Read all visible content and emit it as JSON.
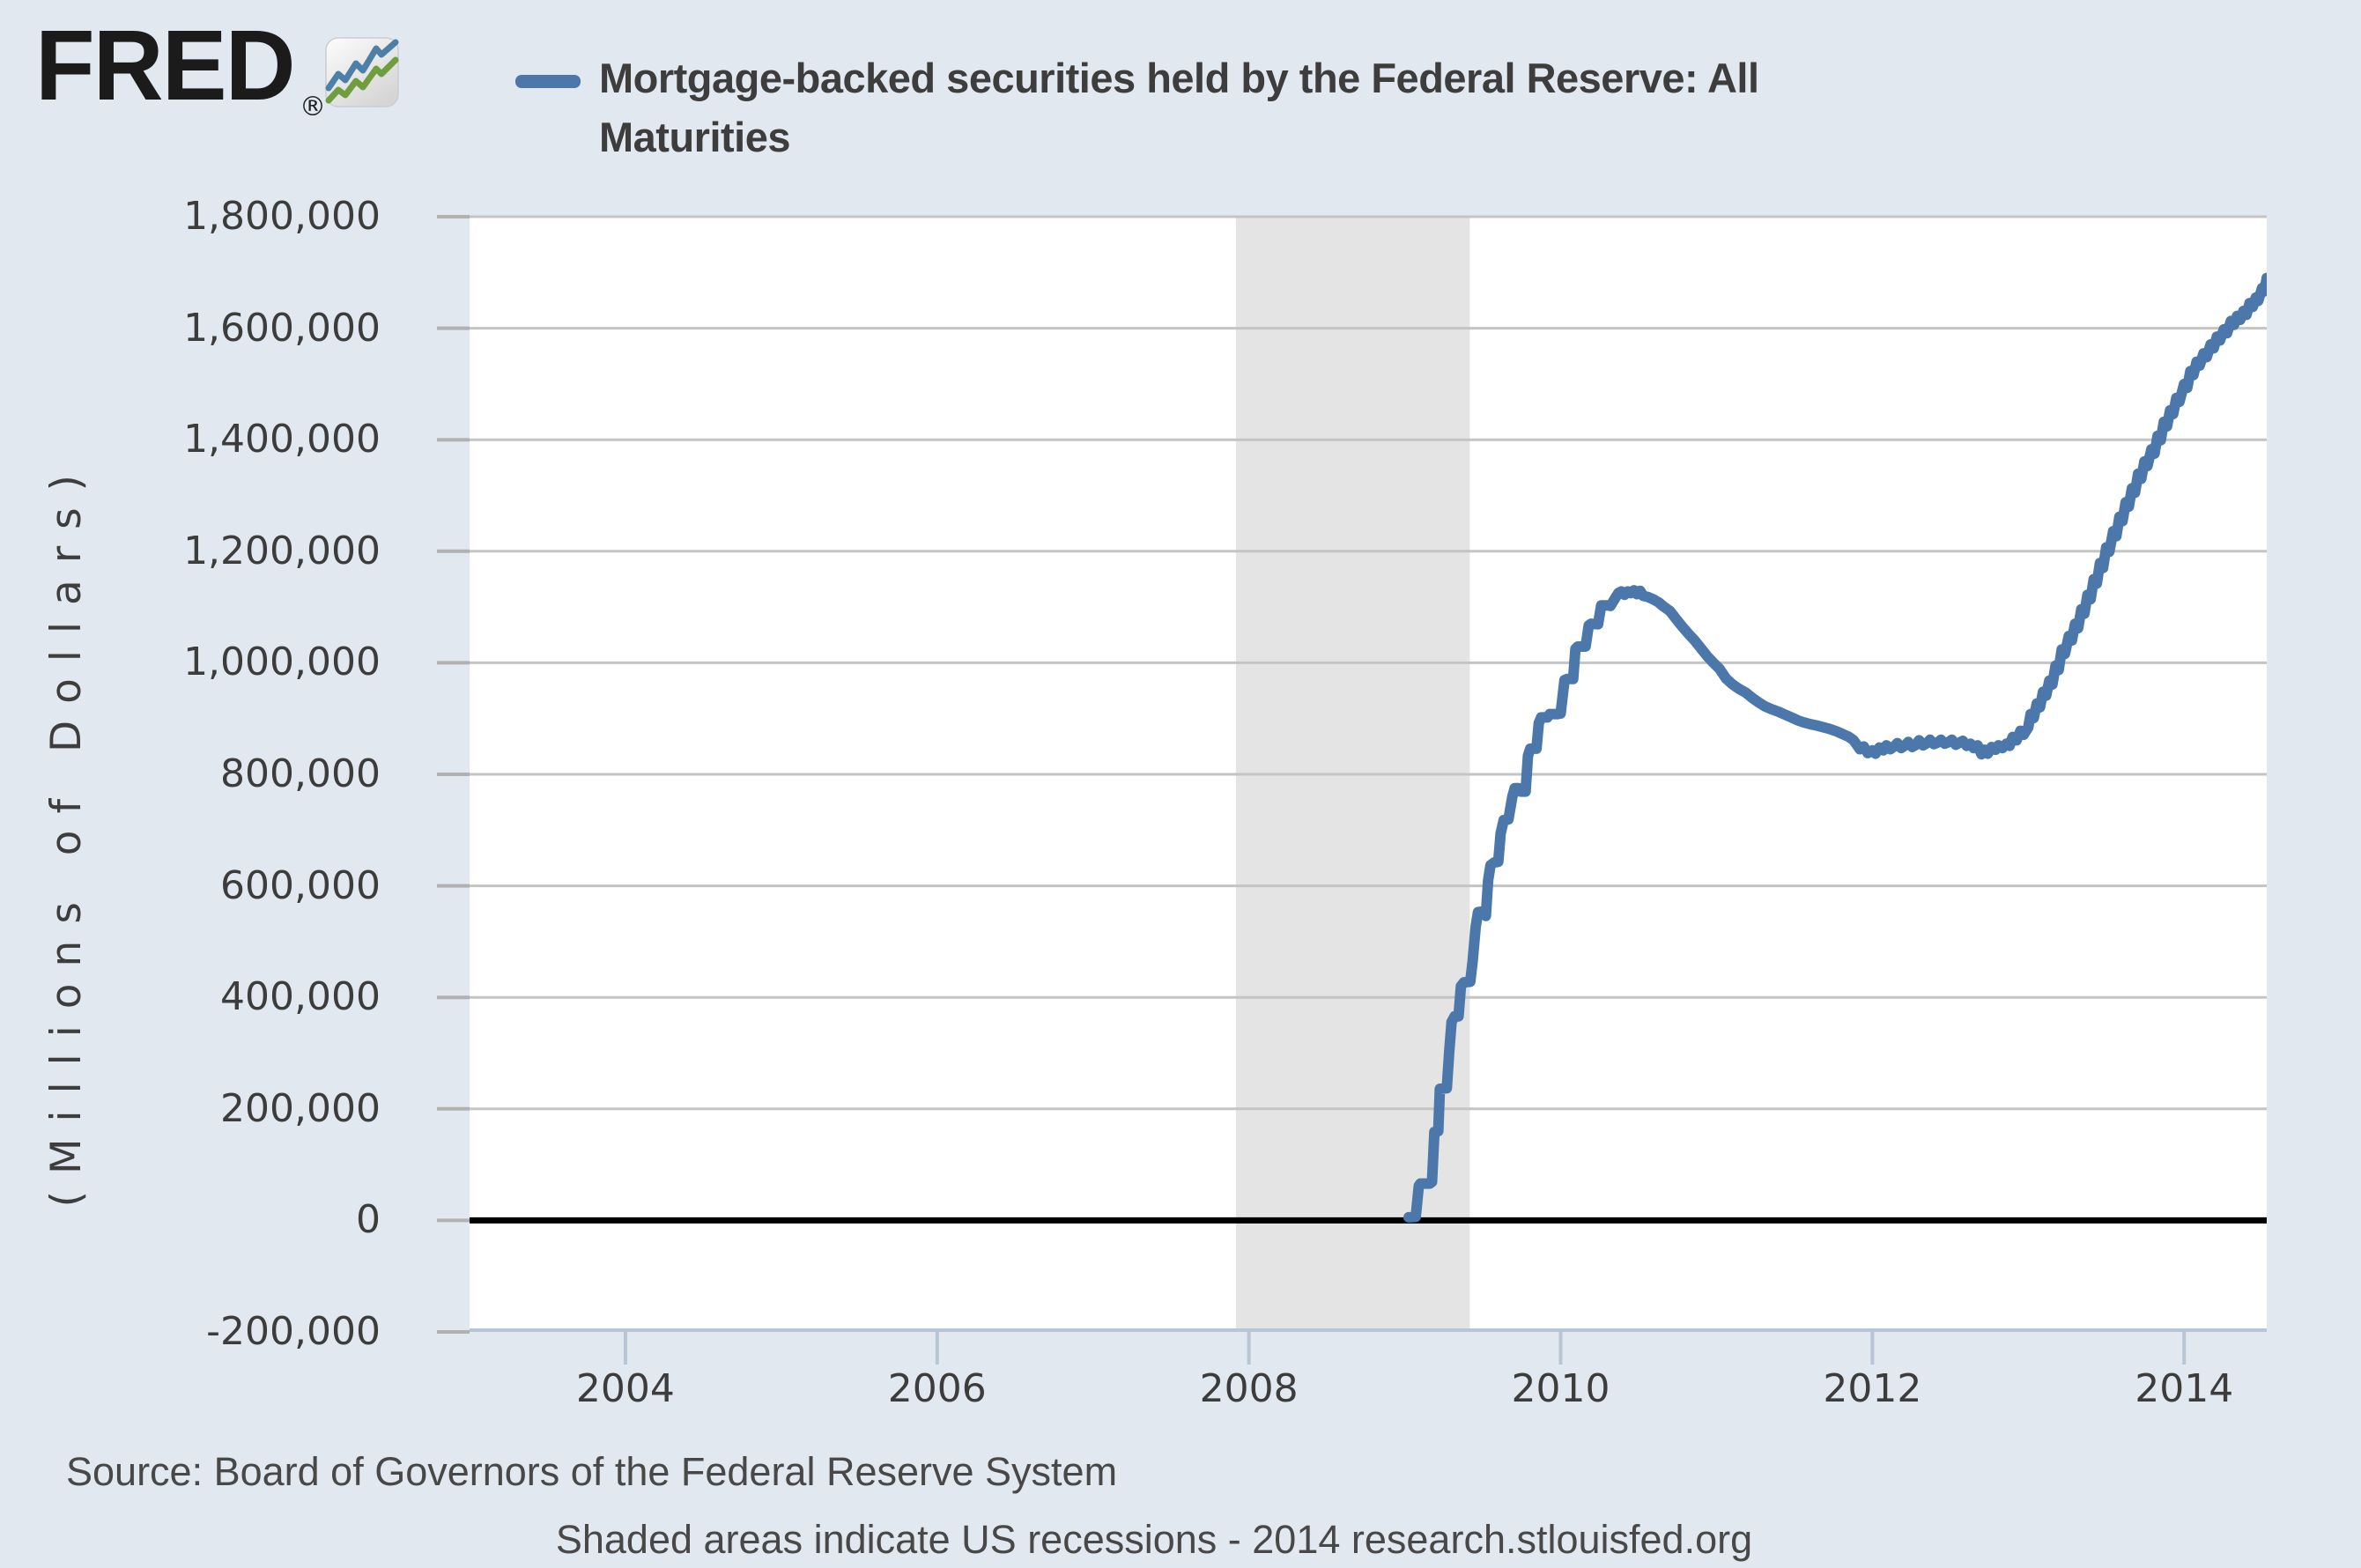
{
  "colors": {
    "page_background": "#e2e8ef",
    "plot_background": "#ffffff",
    "gridline": "#c4c4c4",
    "recession_band": "#e4e4e4",
    "zero_line": "#000000",
    "axis_line": "#b7c5d4",
    "y_tick_mark": "#b1b1b1",
    "text_dark": "#3c3c3c",
    "logo_black": "#1b1b1b",
    "logo_icon_blue": "#4e7fa6",
    "logo_icon_green": "#6f9e3f",
    "series_blue": "#4b77ab"
  },
  "header": {
    "logo_text": "FRED",
    "registered_mark": "®",
    "legend_label": "Mortgage-backed securities held by the Federal Reserve: All Maturities"
  },
  "footer": {
    "source_line": "Source: Board of Governors of the Federal Reserve System",
    "note_line": "Shaded areas indicate US recessions - 2014 research.stlouisfed.org"
  },
  "chart_data": {
    "type": "line",
    "title": "Mortgage-backed securities held by the Federal Reserve: All Maturities",
    "xlabel": "",
    "ylabel": "(Millions of Dollars)",
    "xlim": [
      2003.0,
      2014.53
    ],
    "ylim": [
      -200000,
      1800000
    ],
    "grid": "horizontal",
    "legend_position": "top-left",
    "x_ticks": [
      {
        "value": 2004,
        "label": "2004"
      },
      {
        "value": 2006,
        "label": "2006"
      },
      {
        "value": 2008,
        "label": "2008"
      },
      {
        "value": 2010,
        "label": "2010"
      },
      {
        "value": 2012,
        "label": "2012"
      },
      {
        "value": 2014,
        "label": "2014"
      }
    ],
    "y_ticks": [
      {
        "value": -200000,
        "label": "-200,000"
      },
      {
        "value": 0,
        "label": "0"
      },
      {
        "value": 200000,
        "label": "200,000"
      },
      {
        "value": 400000,
        "label": "400,000"
      },
      {
        "value": 600000,
        "label": "600,000"
      },
      {
        "value": 800000,
        "label": "800,000"
      },
      {
        "value": 1000000,
        "label": "1,000,000"
      },
      {
        "value": 1200000,
        "label": "1,200,000"
      },
      {
        "value": 1400000,
        "label": "1,400,000"
      },
      {
        "value": 1600000,
        "label": "1,600,000"
      },
      {
        "value": 1800000,
        "label": "1,800,000"
      }
    ],
    "recession_bands": [
      {
        "start": 2007.917,
        "end": 2009.417
      }
    ],
    "series": [
      {
        "name": "Mortgage-backed securities held by the Federal Reserve: All Maturities",
        "color": "#4b77ab",
        "points": [
          [
            2009.025,
            5600
          ],
          [
            2009.07,
            6300
          ],
          [
            2009.09,
            62000
          ],
          [
            2009.1,
            66000
          ],
          [
            2009.16,
            66000
          ],
          [
            2009.175,
            69000
          ],
          [
            2009.19,
            159000
          ],
          [
            2009.215,
            160000
          ],
          [
            2009.225,
            236000
          ],
          [
            2009.27,
            237000
          ],
          [
            2009.285,
            302000
          ],
          [
            2009.3,
            356000
          ],
          [
            2009.32,
            366000
          ],
          [
            2009.345,
            366000
          ],
          [
            2009.36,
            420000
          ],
          [
            2009.38,
            427000
          ],
          [
            2009.42,
            428000
          ],
          [
            2009.435,
            463000
          ],
          [
            2009.455,
            527000
          ],
          [
            2009.47,
            553000
          ],
          [
            2009.5,
            554000
          ],
          [
            2009.52,
            546000
          ],
          [
            2009.535,
            610000
          ],
          [
            2009.55,
            637000
          ],
          [
            2009.575,
            642000
          ],
          [
            2009.6,
            643000
          ],
          [
            2009.615,
            694000
          ],
          [
            2009.635,
            718000
          ],
          [
            2009.665,
            719000
          ],
          [
            2009.69,
            760000
          ],
          [
            2009.705,
            775000
          ],
          [
            2009.73,
            775000
          ],
          [
            2009.745,
            769000
          ],
          [
            2009.775,
            769000
          ],
          [
            2009.79,
            833000
          ],
          [
            2009.805,
            846000
          ],
          [
            2009.845,
            846000
          ],
          [
            2009.86,
            892000
          ],
          [
            2009.875,
            902000
          ],
          [
            2009.915,
            902000
          ],
          [
            2009.93,
            908000
          ],
          [
            2009.98,
            908000
          ],
          [
            2010.0,
            909000
          ],
          [
            2010.025,
            969000
          ],
          [
            2010.04,
            971000
          ],
          [
            2010.08,
            971000
          ],
          [
            2010.095,
            1025000
          ],
          [
            2010.11,
            1029000
          ],
          [
            2010.16,
            1029000
          ],
          [
            2010.18,
            1067000
          ],
          [
            2010.195,
            1070000
          ],
          [
            2010.24,
            1069000
          ],
          [
            2010.26,
            1103000
          ],
          [
            2010.3,
            1103000
          ],
          [
            2010.32,
            1102000
          ],
          [
            2010.35,
            1116000
          ],
          [
            2010.37,
            1125000
          ],
          [
            2010.39,
            1128000
          ],
          [
            2010.41,
            1122000
          ],
          [
            2010.43,
            1128000
          ],
          [
            2010.45,
            1125000
          ],
          [
            2010.47,
            1130000
          ],
          [
            2010.49,
            1123000
          ],
          [
            2010.51,
            1129000
          ],
          [
            2010.53,
            1120000
          ],
          [
            2010.56,
            1118000
          ],
          [
            2010.6,
            1113000
          ],
          [
            2010.63,
            1108000
          ],
          [
            2010.66,
            1101000
          ],
          [
            2010.7,
            1093000
          ],
          [
            2010.74,
            1079000
          ],
          [
            2010.78,
            1065000
          ],
          [
            2010.82,
            1052000
          ],
          [
            2010.86,
            1040000
          ],
          [
            2010.9,
            1026000
          ],
          [
            2010.94,
            1012000
          ],
          [
            2010.98,
            1000000
          ],
          [
            2011.02,
            989000
          ],
          [
            2011.06,
            972000
          ],
          [
            2011.1,
            962000
          ],
          [
            2011.14,
            954000
          ],
          [
            2011.19,
            946000
          ],
          [
            2011.23,
            937000
          ],
          [
            2011.27,
            929000
          ],
          [
            2011.31,
            922000
          ],
          [
            2011.35,
            917000
          ],
          [
            2011.4,
            912000
          ],
          [
            2011.44,
            907000
          ],
          [
            2011.48,
            902000
          ],
          [
            2011.52,
            897000
          ],
          [
            2011.56,
            893000
          ],
          [
            2011.6,
            890000
          ],
          [
            2011.65,
            887000
          ],
          [
            2011.69,
            884000
          ],
          [
            2011.73,
            881000
          ],
          [
            2011.77,
            877000
          ],
          [
            2011.81,
            872000
          ],
          [
            2011.85,
            867000
          ],
          [
            2011.88,
            861000
          ],
          [
            2011.9,
            853000
          ],
          [
            2011.92,
            845000
          ],
          [
            2011.945,
            850000
          ],
          [
            2011.97,
            838000
          ],
          [
            2012.0,
            843000
          ],
          [
            2012.02,
            837000
          ],
          [
            2012.045,
            848000
          ],
          [
            2012.07,
            843000
          ],
          [
            2012.09,
            852000
          ],
          [
            2012.115,
            845000
          ],
          [
            2012.14,
            850000
          ],
          [
            2012.16,
            856000
          ],
          [
            2012.185,
            847000
          ],
          [
            2012.21,
            852000
          ],
          [
            2012.23,
            858000
          ],
          [
            2012.255,
            849000
          ],
          [
            2012.28,
            853000
          ],
          [
            2012.3,
            861000
          ],
          [
            2012.325,
            852000
          ],
          [
            2012.35,
            856000
          ],
          [
            2012.37,
            862000
          ],
          [
            2012.395,
            854000
          ],
          [
            2012.42,
            857000
          ],
          [
            2012.44,
            862000
          ],
          [
            2012.465,
            855000
          ],
          [
            2012.49,
            858000
          ],
          [
            2012.51,
            862000
          ],
          [
            2012.535,
            853000
          ],
          [
            2012.56,
            857000
          ],
          [
            2012.58,
            860000
          ],
          [
            2012.605,
            851000
          ],
          [
            2012.63,
            855000
          ],
          [
            2012.65,
            847000
          ],
          [
            2012.675,
            852000
          ],
          [
            2012.7,
            836000
          ],
          [
            2012.72,
            844000
          ],
          [
            2012.74,
            837000
          ],
          [
            2012.765,
            849000
          ],
          [
            2012.79,
            844000
          ],
          [
            2012.81,
            852000
          ],
          [
            2012.835,
            847000
          ],
          [
            2012.86,
            855000
          ],
          [
            2012.88,
            851000
          ],
          [
            2012.9,
            867000
          ],
          [
            2012.925,
            861000
          ],
          [
            2012.95,
            878000
          ],
          [
            2012.97,
            871000
          ],
          [
            2013.0,
            884000
          ],
          [
            2013.015,
            908000
          ],
          [
            2013.035,
            901000
          ],
          [
            2013.055,
            927000
          ],
          [
            2013.075,
            920000
          ],
          [
            2013.095,
            948000
          ],
          [
            2013.115,
            941000
          ],
          [
            2013.135,
            968000
          ],
          [
            2013.155,
            961000
          ],
          [
            2013.175,
            995000
          ],
          [
            2013.195,
            987000
          ],
          [
            2013.215,
            1024000
          ],
          [
            2013.235,
            1016000
          ],
          [
            2013.26,
            1048000
          ],
          [
            2013.28,
            1040000
          ],
          [
            2013.3,
            1070000
          ],
          [
            2013.32,
            1062000
          ],
          [
            2013.34,
            1096000
          ],
          [
            2013.36,
            1088000
          ],
          [
            2013.38,
            1122000
          ],
          [
            2013.4,
            1114000
          ],
          [
            2013.42,
            1150000
          ],
          [
            2013.44,
            1142000
          ],
          [
            2013.46,
            1179000
          ],
          [
            2013.48,
            1170000
          ],
          [
            2013.5,
            1207000
          ],
          [
            2013.52,
            1199000
          ],
          [
            2013.545,
            1236000
          ],
          [
            2013.565,
            1227000
          ],
          [
            2013.585,
            1262000
          ],
          [
            2013.605,
            1254000
          ],
          [
            2013.625,
            1288000
          ],
          [
            2013.645,
            1280000
          ],
          [
            2013.665,
            1313000
          ],
          [
            2013.685,
            1305000
          ],
          [
            2013.705,
            1339000
          ],
          [
            2013.725,
            1330000
          ],
          [
            2013.745,
            1361000
          ],
          [
            2013.765,
            1353000
          ],
          [
            2013.79,
            1383000
          ],
          [
            2013.81,
            1375000
          ],
          [
            2013.83,
            1407000
          ],
          [
            2013.85,
            1399000
          ],
          [
            2013.87,
            1432000
          ],
          [
            2013.89,
            1424000
          ],
          [
            2013.91,
            1453000
          ],
          [
            2013.93,
            1446000
          ],
          [
            2013.95,
            1475000
          ],
          [
            2013.97,
            1468000
          ],
          [
            2014.0,
            1500000
          ],
          [
            2014.02,
            1493000
          ],
          [
            2014.04,
            1523000
          ],
          [
            2014.06,
            1516000
          ],
          [
            2014.08,
            1540000
          ],
          [
            2014.1,
            1533000
          ],
          [
            2014.125,
            1555000
          ],
          [
            2014.145,
            1548000
          ],
          [
            2014.17,
            1571000
          ],
          [
            2014.19,
            1564000
          ],
          [
            2014.21,
            1585000
          ],
          [
            2014.23,
            1578000
          ],
          [
            2014.255,
            1598000
          ],
          [
            2014.275,
            1591000
          ],
          [
            2014.3,
            1613000
          ],
          [
            2014.32,
            1606000
          ],
          [
            2014.34,
            1622000
          ],
          [
            2014.36,
            1615000
          ],
          [
            2014.38,
            1631000
          ],
          [
            2014.4,
            1624000
          ],
          [
            2014.42,
            1645000
          ],
          [
            2014.44,
            1638000
          ],
          [
            2014.46,
            1655000
          ],
          [
            2014.475,
            1649000
          ],
          [
            2014.5,
            1672000
          ],
          [
            2014.515,
            1666000
          ],
          [
            2014.53,
            1690000
          ]
        ]
      }
    ]
  }
}
